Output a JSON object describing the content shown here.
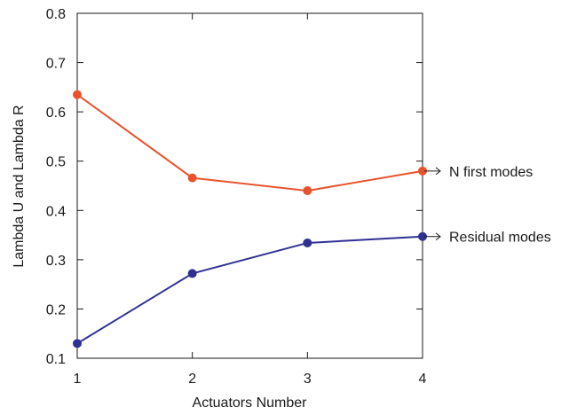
{
  "chart_data": {
    "type": "line",
    "title": "",
    "xlabel": "Actuators Number",
    "ylabel": "Lambda U and Lambda R",
    "xlim": [
      1,
      4
    ],
    "ylim": [
      0.1,
      0.8
    ],
    "x": [
      1,
      2,
      3,
      4
    ],
    "xticks": [
      "1",
      "2",
      "3",
      "4"
    ],
    "yticks": [
      "0.1",
      "0.2",
      "0.3",
      "0.4",
      "0.5",
      "0.6",
      "0.7",
      "0.8"
    ],
    "grid": false,
    "legend": "none",
    "series": [
      {
        "name": "N first modes",
        "values": [
          0.635,
          0.466,
          0.44,
          0.48
        ],
        "color": "#e8532e"
      },
      {
        "name": "Residual modes",
        "values": [
          0.13,
          0.272,
          0.334,
          0.347
        ],
        "color": "#2e3192"
      }
    ],
    "annotations": [
      {
        "text": "N first modes",
        "series": 0
      },
      {
        "text": "Residual modes",
        "series": 1
      }
    ]
  }
}
